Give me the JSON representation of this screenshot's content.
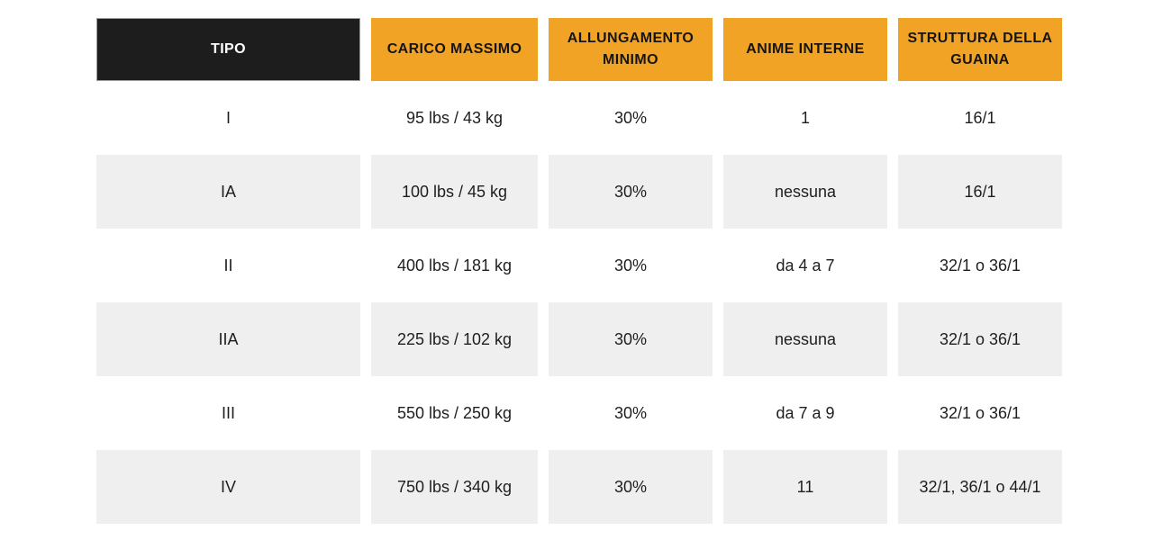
{
  "colors": {
    "header_dark_bg": "#1d1d1d",
    "header_dark_text": "#ffffff",
    "header_accent_bg": "#f0a325",
    "header_accent_text": "#171513",
    "row_alt_bg": "#efefef",
    "body_text": "#1e1e1e",
    "page_bg": "#ffffff"
  },
  "chart_data": {
    "type": "table",
    "title": "",
    "columns": [
      "TIPO",
      "CARICO MASSIMO",
      "ALLUNGAMENTO MINIMO",
      "ANIME INTERNE",
      "STRUTTURA DELLA GUAINA"
    ],
    "rows": [
      [
        "I",
        "95 lbs / 43 kg",
        "30%",
        "1",
        "16/1"
      ],
      [
        "IA",
        "100 lbs / 45 kg",
        "30%",
        "nessuna",
        "16/1"
      ],
      [
        "II",
        "400 lbs / 181 kg",
        "30%",
        "da 4 a 7",
        "32/1 o 36/1"
      ],
      [
        "IIA",
        "225 lbs / 102 kg",
        "30%",
        "nessuna",
        "32/1 o 36/1"
      ],
      [
        "III",
        "550 lbs / 250 kg",
        "30%",
        "da 7 a 9",
        "32/1 o 36/1"
      ],
      [
        "IV",
        "750 lbs / 340 kg",
        "30%",
        "11",
        "32/1, 36/1 o 44/1"
      ]
    ],
    "layout": {
      "striped_rows": [
        1,
        3,
        5
      ],
      "header_styles": [
        "dark",
        "accent",
        "accent",
        "accent",
        "accent"
      ]
    }
  },
  "table": {
    "headers": {
      "tipo": "TIPO",
      "carico_massimo": "CARICO MASSIMO",
      "allungamento_minimo": "ALLUNGAMENTO MINIMO",
      "anime_interne": "ANIME INTERNE",
      "struttura_della_guaina": "STRUTTURA DELLA GUAINA"
    },
    "rows": [
      {
        "tipo": "I",
        "carico_massimo": "95 lbs / 43 kg",
        "allungamento_minimo": "30%",
        "anime_interne": "1",
        "struttura_della_guaina": "16/1"
      },
      {
        "tipo": "IA",
        "carico_massimo": "100 lbs / 45 kg",
        "allungamento_minimo": "30%",
        "anime_interne": "nessuna",
        "struttura_della_guaina": "16/1"
      },
      {
        "tipo": "II",
        "carico_massimo": "400 lbs / 181 kg",
        "allungamento_minimo": "30%",
        "anime_interne": "da 4 a 7",
        "struttura_della_guaina": "32/1 o 36/1"
      },
      {
        "tipo": "IIA",
        "carico_massimo": "225 lbs / 102 kg",
        "allungamento_minimo": "30%",
        "anime_interne": "nessuna",
        "struttura_della_guaina": "32/1 o 36/1"
      },
      {
        "tipo": "III",
        "carico_massimo": "550 lbs / 250 kg",
        "allungamento_minimo": "30%",
        "anime_interne": "da 7 a 9",
        "struttura_della_guaina": "32/1 o 36/1"
      },
      {
        "tipo": "IV",
        "carico_massimo": "750 lbs / 340 kg",
        "allungamento_minimo": "30%",
        "anime_interne": "11",
        "struttura_della_guaina": "32/1, 36/1 o 44/1"
      }
    ]
  }
}
